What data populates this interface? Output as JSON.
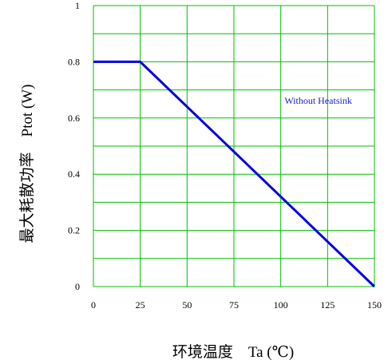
{
  "chart_data": {
    "type": "line",
    "xlabel": "环境温度    Ta (℃)",
    "ylabel": "最大耗散功率    Ptot (W)",
    "x_ticks": [
      "0",
      "25",
      "50",
      "75",
      "100",
      "125",
      "150"
    ],
    "y_ticks": [
      "0",
      "0.2",
      "0.4",
      "0.6",
      "0.8",
      "1"
    ],
    "xlim": [
      0,
      150
    ],
    "ylim": [
      0,
      1
    ],
    "grid": true,
    "series": [
      {
        "name": "Without Heatsink",
        "x": [
          0,
          25,
          150
        ],
        "y": [
          0.8,
          0.8,
          0
        ]
      }
    ],
    "annotations": [
      {
        "text": "Without Heatsink",
        "x": 120,
        "y": 0.65
      }
    ],
    "colors": {
      "grid": "#00c000",
      "line": "#0000e0",
      "annotation": "#1a1ad6"
    }
  }
}
